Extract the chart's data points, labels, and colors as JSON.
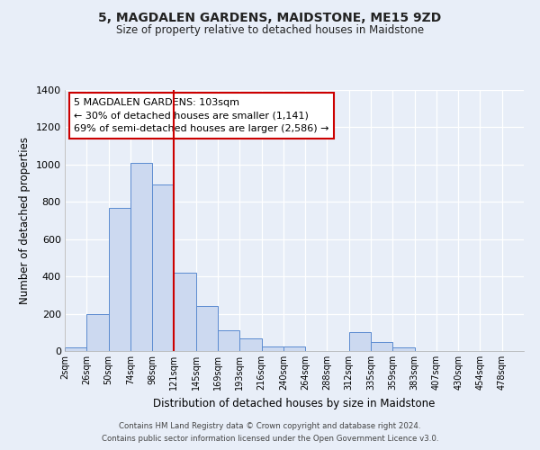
{
  "title": "5, MAGDALEN GARDENS, MAIDSTONE, ME15 9ZD",
  "subtitle": "Size of property relative to detached houses in Maidstone",
  "xlabel": "Distribution of detached houses by size in Maidstone",
  "ylabel": "Number of detached properties",
  "bar_labels": [
    "2sqm",
    "26sqm",
    "50sqm",
    "74sqm",
    "98sqm",
    "121sqm",
    "145sqm",
    "169sqm",
    "193sqm",
    "216sqm",
    "240sqm",
    "264sqm",
    "288sqm",
    "312sqm",
    "335sqm",
    "359sqm",
    "383sqm",
    "407sqm",
    "430sqm",
    "454sqm",
    "478sqm"
  ],
  "bar_values": [
    20,
    200,
    770,
    1010,
    895,
    420,
    240,
    110,
    70,
    25,
    25,
    0,
    0,
    100,
    50,
    20,
    0,
    0,
    0,
    0,
    0
  ],
  "bar_color": "#ccd9f0",
  "bar_edge_color": "#5b8bd0",
  "vline_x": 5,
  "vline_color": "#cc0000",
  "ylim": [
    0,
    1400
  ],
  "yticks": [
    0,
    200,
    400,
    600,
    800,
    1000,
    1200,
    1400
  ],
  "annotation_title": "5 MAGDALEN GARDENS: 103sqm",
  "annotation_line1": "← 30% of detached houses are smaller (1,141)",
  "annotation_line2": "69% of semi-detached houses are larger (2,586) →",
  "annotation_box_color": "#ffffff",
  "annotation_box_edge": "#cc0000",
  "footer1": "Contains HM Land Registry data © Crown copyright and database right 2024.",
  "footer2": "Contains public sector information licensed under the Open Government Licence v3.0.",
  "background_color": "#e8eef8",
  "plot_background": "#e8eef8",
  "grid_color": "#ffffff"
}
